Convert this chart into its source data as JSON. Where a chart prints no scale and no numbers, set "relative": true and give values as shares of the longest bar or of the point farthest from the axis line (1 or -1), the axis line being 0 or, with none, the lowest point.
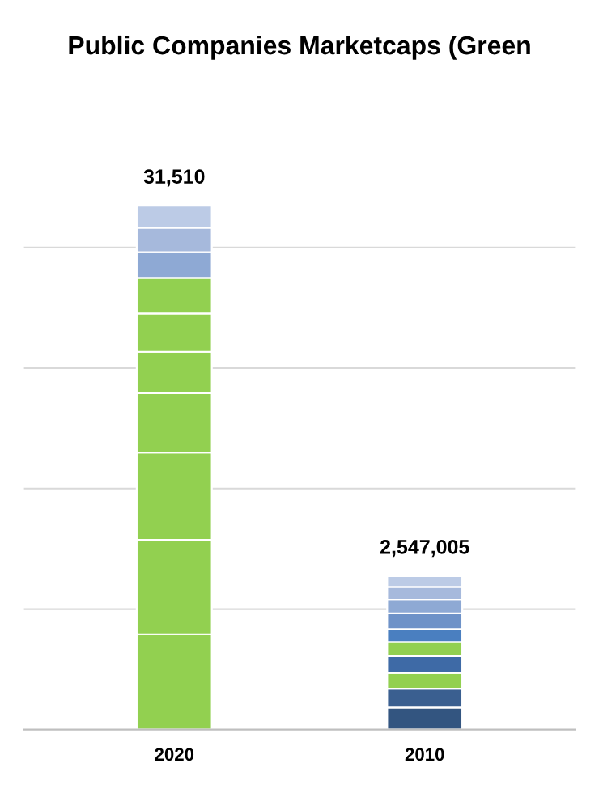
{
  "chart_data": {
    "type": "bar",
    "title": "Public Companies Marketcaps (Green",
    "categories": [
      "2020",
      "2010"
    ],
    "stacked": true,
    "relative": true,
    "grid": "y",
    "legend": false,
    "annotations": [
      {
        "text": "31,510",
        "x": "2020",
        "y": 1.0
      },
      {
        "text": "2,547,005",
        "x": "2010",
        "y": 0.293
      }
    ],
    "series": [
      {
        "colors": [
          "#92d050",
          "#335580"
        ],
        "values": [
          0.182,
          0.042
        ]
      },
      {
        "colors": [
          "#92d050",
          "#3a5f90"
        ],
        "values": [
          0.18,
          0.036
        ]
      },
      {
        "colors": [
          "#92d050",
          "#92d050"
        ],
        "values": [
          0.167,
          0.03
        ]
      },
      {
        "colors": [
          "#92d050",
          "#3e6aa6"
        ],
        "values": [
          0.113,
          0.032
        ]
      },
      {
        "colors": [
          "#92d050",
          "#92d050"
        ],
        "values": [
          0.079,
          0.027
        ]
      },
      {
        "colors": [
          "#92d050",
          "#4a7fc0"
        ],
        "values": [
          0.073,
          0.025
        ]
      },
      {
        "colors": [
          "#92d050",
          "#6e92c8"
        ],
        "values": [
          0.068,
          0.03
        ]
      },
      {
        "colors": [
          "#8ea9d4",
          "#8ea9d4"
        ],
        "values": [
          0.049,
          0.026
        ]
      },
      {
        "colors": [
          "#a6b9dc",
          "#a6b9dc"
        ],
        "values": [
          0.047,
          0.024
        ]
      },
      {
        "colors": [
          "#bccbe6",
          "#bccbe6"
        ],
        "values": [
          0.042,
          0.021
        ]
      }
    ]
  }
}
